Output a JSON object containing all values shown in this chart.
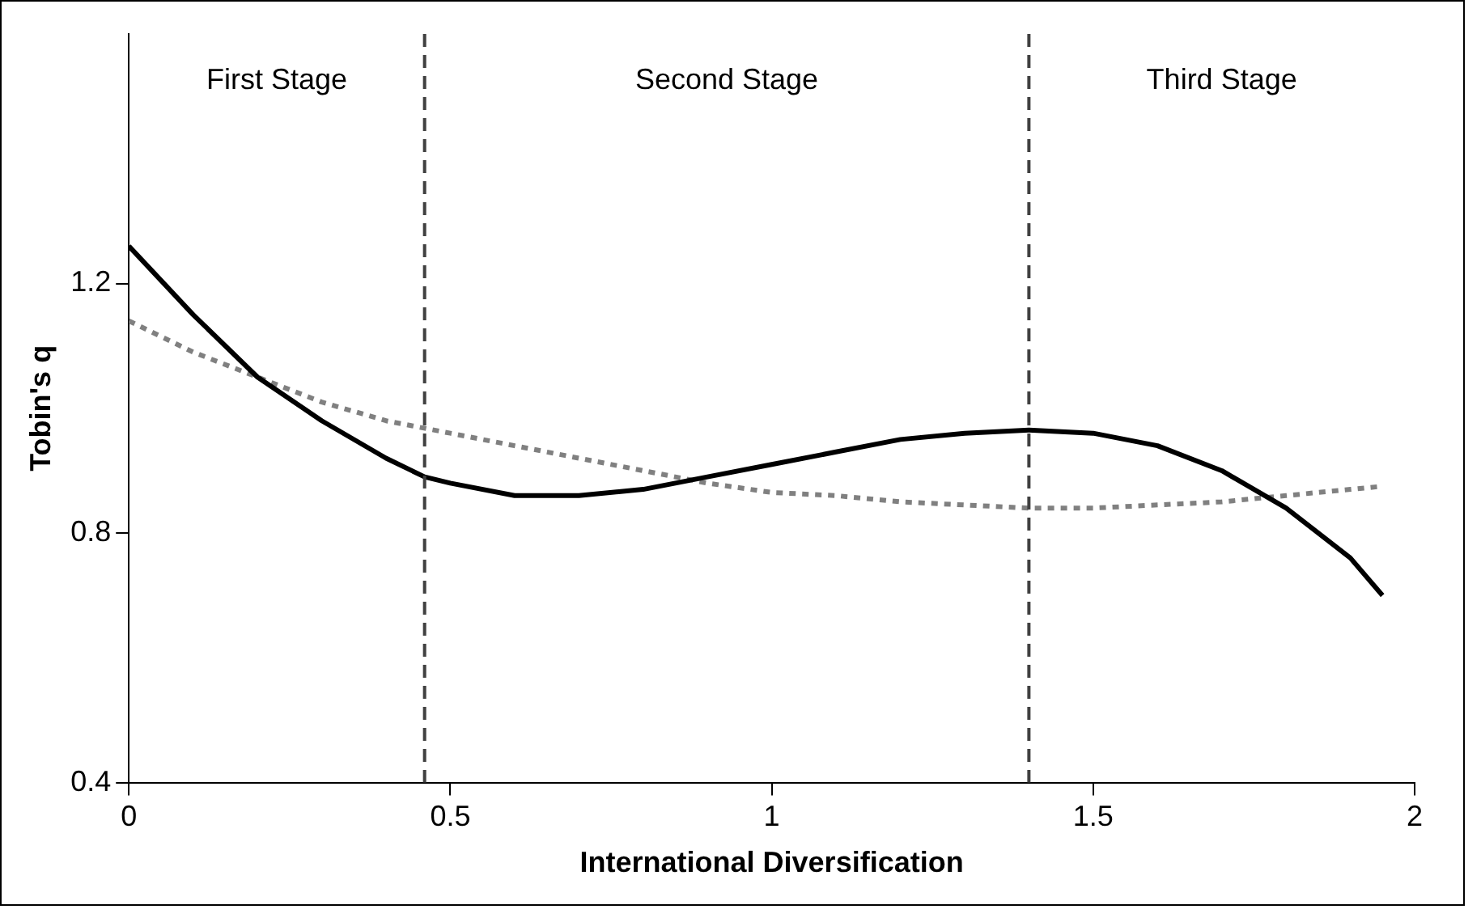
{
  "chart_data": {
    "type": "line",
    "xlabel": "International Diversification",
    "ylabel": "Tobin's q",
    "xlim": [
      0,
      2
    ],
    "xticks": [
      0,
      0.5,
      1,
      1.5,
      2
    ],
    "ylim": [
      0.4,
      1.6
    ],
    "yticks": [
      0.4,
      0.8,
      1.2
    ],
    "grid": false,
    "legend": false,
    "marker": "none",
    "series": [
      {
        "color": "#000000",
        "line_style": "solid",
        "x": [
          0,
          0.1,
          0.2,
          0.3,
          0.4,
          0.46,
          0.5,
          0.6,
          0.7,
          0.8,
          0.9,
          1.0,
          1.1,
          1.2,
          1.3,
          1.4,
          1.5,
          1.6,
          1.7,
          1.8,
          1.9,
          1.95
        ],
        "values": [
          1.26,
          1.15,
          1.05,
          0.98,
          0.92,
          0.89,
          0.88,
          0.86,
          0.86,
          0.87,
          0.89,
          0.91,
          0.93,
          0.95,
          0.96,
          0.965,
          0.96,
          0.94,
          0.9,
          0.84,
          0.76,
          0.7
        ]
      },
      {
        "color": "#808080",
        "line_style": "dotted",
        "x": [
          0,
          0.1,
          0.2,
          0.3,
          0.4,
          0.5,
          0.6,
          0.7,
          0.8,
          0.9,
          1.0,
          1.1,
          1.2,
          1.3,
          1.4,
          1.5,
          1.6,
          1.7,
          1.8,
          1.9,
          1.95
        ],
        "values": [
          1.14,
          1.09,
          1.05,
          1.01,
          0.98,
          0.96,
          0.94,
          0.92,
          0.9,
          0.88,
          0.865,
          0.86,
          0.85,
          0.845,
          0.84,
          0.84,
          0.845,
          0.85,
          0.86,
          0.87,
          0.875
        ]
      }
    ],
    "ref_lines": [
      {
        "axis": "x",
        "value": 0.46,
        "color": "#404040",
        "line_style": "dashed"
      },
      {
        "axis": "x",
        "value": 1.4,
        "color": "#404040",
        "line_style": "dashed"
      }
    ],
    "annotations": [
      "First Stage",
      "Second Stage",
      "Third Stage"
    ]
  }
}
